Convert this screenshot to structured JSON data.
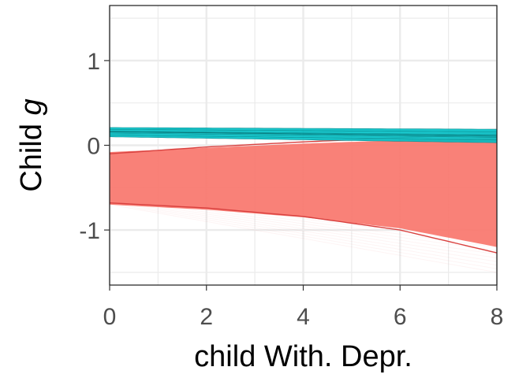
{
  "chart_data": {
    "type": "line",
    "xlabel": "child With. Depr.",
    "ylabel": {
      "text": "Child ",
      "italic": "g"
    },
    "xlim": [
      0,
      8
    ],
    "ylim": [
      -1.65,
      1.65
    ],
    "x_ticks": [
      "0",
      "2",
      "4",
      "6",
      "8"
    ],
    "y_ticks": [
      "-1",
      "0",
      "1"
    ],
    "grid": true,
    "legend": "none",
    "series": [
      {
        "color": "#00BFC4",
        "band_upper": {
          "x": [
            0,
            8
          ],
          "y": [
            0.21,
            0.19
          ]
        },
        "band_lower": {
          "x": [
            0,
            8
          ],
          "y": [
            0.1,
            0.03
          ]
        },
        "center": {
          "x": [
            0,
            8
          ],
          "y": [
            0.16,
            0.11
          ]
        }
      },
      {
        "color": "#F8766D",
        "band_upper": {
          "x": [
            0,
            2,
            4,
            6,
            8
          ],
          "y": [
            -0.08,
            -0.03,
            0.02,
            0.06,
            0.1
          ]
        },
        "band_lower": {
          "x": [
            0,
            2,
            4,
            6,
            8
          ],
          "y": [
            -0.7,
            -0.76,
            -0.85,
            -0.98,
            -1.2
          ]
        },
        "ci_upper": {
          "x": [
            0,
            2,
            4,
            6,
            8
          ],
          "y": [
            -0.1,
            -0.02,
            0.04,
            0.09,
            0.13
          ]
        },
        "ci_lower": {
          "x": [
            0,
            2,
            4,
            6,
            8
          ],
          "y": [
            -0.68,
            -0.74,
            -0.84,
            -1.0,
            -1.27
          ]
        },
        "fan_upper": {
          "x": [
            0,
            8
          ],
          "y": [
            -0.08,
            0.2
          ]
        },
        "fan_lower": {
          "x": [
            0,
            8
          ],
          "y": [
            -0.7,
            -1.5
          ]
        }
      }
    ]
  }
}
